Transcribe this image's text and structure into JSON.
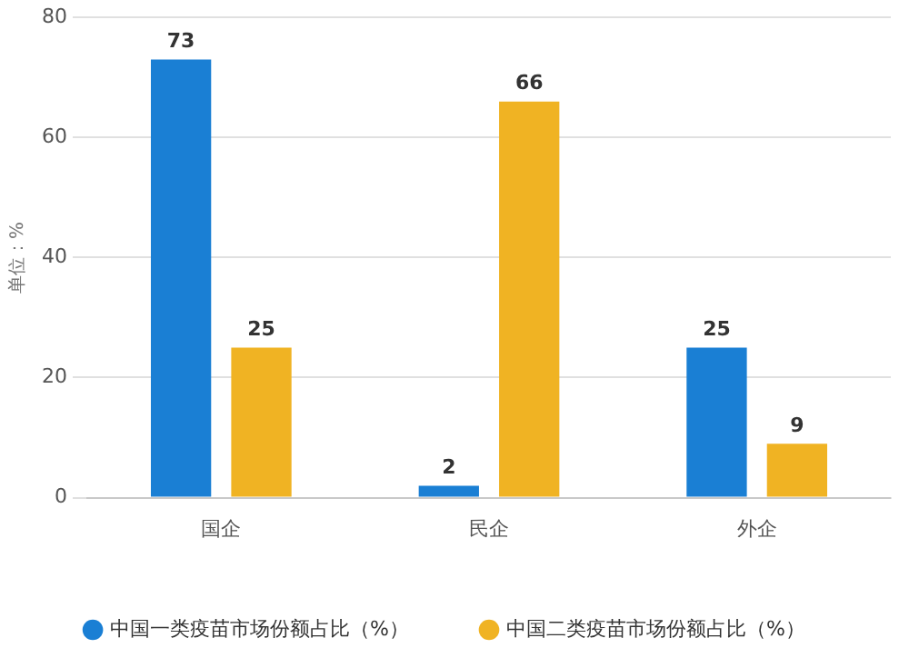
{
  "chart_data": {
    "type": "bar",
    "ylabel": "单位：%",
    "categories": [
      "国企",
      "民企",
      "外企"
    ],
    "series": [
      {
        "name": "中国一类疫苗市场份额占比（%）",
        "color": "#1a7fd4",
        "values": [
          73,
          2,
          25
        ]
      },
      {
        "name": "中国二类疫苗市场份额占比（%）",
        "color": "#f0b323",
        "values": [
          25,
          66,
          9
        ]
      }
    ],
    "ylim": [
      0,
      80
    ],
    "yticks": [
      0,
      20,
      40,
      60,
      80
    ],
    "grid": "y",
    "legend": "bottom",
    "data_labels": true
  }
}
